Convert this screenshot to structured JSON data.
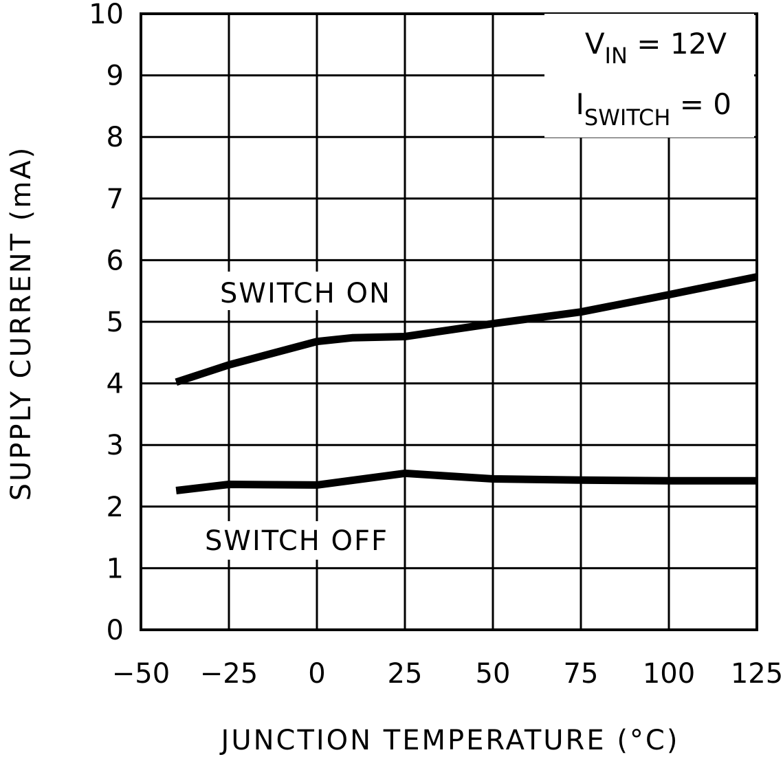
{
  "chart_data": {
    "type": "line",
    "xlabel": "JUNCTION TEMPERATURE (°C)",
    "ylabel": "SUPPLY CURRENT (mA)",
    "xlim": [
      -50,
      125
    ],
    "ylim": [
      0,
      10
    ],
    "x_ticks": [
      -50,
      -25,
      0,
      25,
      50,
      75,
      100,
      125
    ],
    "y_ticks": [
      0,
      1,
      2,
      3,
      4,
      5,
      6,
      7,
      8,
      9,
      10
    ],
    "x_tick_labels": [
      "−50",
      "−25",
      "0",
      "25",
      "50",
      "75",
      "100",
      "125"
    ],
    "y_tick_labels": [
      "0",
      "1",
      "2",
      "3",
      "4",
      "5",
      "6",
      "7",
      "8",
      "9",
      "10"
    ],
    "grid": true,
    "annotations": [
      {
        "main": "V",
        "sub": "IN",
        "rest": " = 12V"
      },
      {
        "main": "I",
        "sub": "SWITCH",
        "rest": " = 0"
      }
    ],
    "series": [
      {
        "name": "SWITCH ON",
        "x": [
          -40,
          -25,
          0,
          10,
          25,
          50,
          75,
          100,
          125
        ],
        "values": [
          4.02,
          4.3,
          4.68,
          4.74,
          4.76,
          4.97,
          5.16,
          5.44,
          5.73
        ]
      },
      {
        "name": "SWITCH OFF",
        "x": [
          -40,
          -25,
          0,
          25,
          50,
          75,
          100,
          125
        ],
        "values": [
          2.26,
          2.36,
          2.35,
          2.54,
          2.45,
          2.43,
          2.42,
          2.42
        ]
      }
    ]
  }
}
